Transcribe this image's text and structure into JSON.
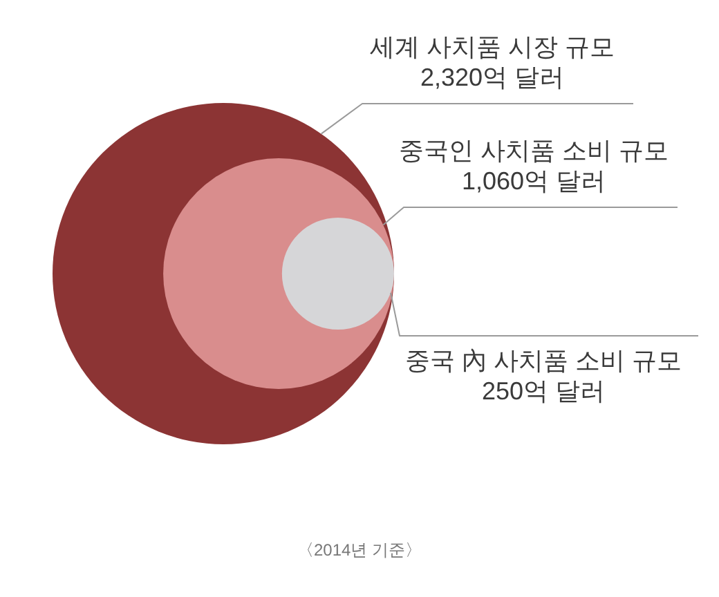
{
  "chart_data": {
    "type": "other",
    "categories": [
      "세계 사치품 시장 규모",
      "중국인 사치품 소비 규모",
      "중국 內 사치품 소비 규모"
    ],
    "values": [
      2320,
      1060,
      250
    ],
    "value_labels": [
      "2,320억 달러",
      "1,060억 달러",
      "250억 달러"
    ],
    "colors": [
      "#8c3434",
      "#d98d8d",
      "#d6d6d8"
    ],
    "annotations": [
      "〈2014년 기준〉"
    ]
  }
}
